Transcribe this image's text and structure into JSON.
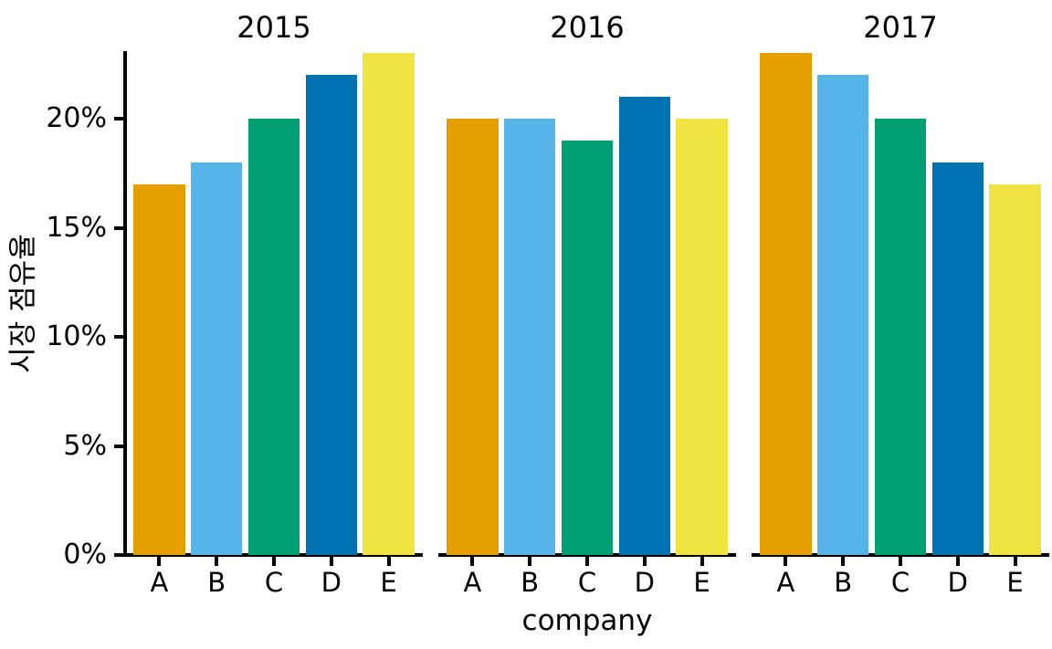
{
  "chart_data": {
    "type": "bar",
    "categories": [
      "A",
      "B",
      "C",
      "D",
      "E"
    ],
    "facets": [
      {
        "title": "2015",
        "values": [
          17,
          18,
          20,
          22,
          23
        ]
      },
      {
        "title": "2016",
        "values": [
          20,
          20,
          19,
          21,
          20
        ]
      },
      {
        "title": "2017",
        "values": [
          23,
          22,
          20,
          18,
          17
        ]
      }
    ],
    "bar_colors": [
      "#E69F00",
      "#56B4E9",
      "#009E73",
      "#0072B2",
      "#F0E442"
    ],
    "title": "",
    "xlabel": "company",
    "ylabel": "시장 점유율",
    "yticks": [
      "0%",
      "5%",
      "10%",
      "15%",
      "20%"
    ],
    "ytick_values": [
      0,
      5,
      10,
      15,
      20
    ],
    "ylim": [
      0,
      23.1
    ],
    "grid": false,
    "legend": null,
    "axis_color": "#000000",
    "background_color": "#ffffff"
  }
}
